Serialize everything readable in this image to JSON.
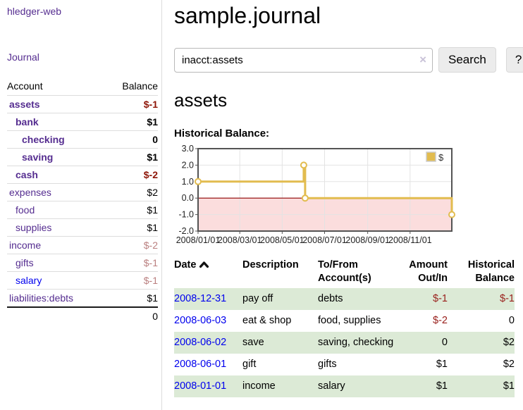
{
  "app": {
    "title": "hledger-web",
    "nav_journal": "Journal"
  },
  "sidebar": {
    "accounts_header": {
      "account": "Account",
      "balance": "Balance"
    },
    "accounts": [
      {
        "name": "assets",
        "balance": "$-1",
        "level": 1,
        "in_query": true,
        "link_unvisited": false
      },
      {
        "name": "bank",
        "balance": "$1",
        "level": 2,
        "in_query": true,
        "link_unvisited": false
      },
      {
        "name": "checking",
        "balance": "0",
        "level": 3,
        "in_query": true,
        "link_unvisited": false
      },
      {
        "name": "saving",
        "balance": "$1",
        "level": 3,
        "in_query": true,
        "link_unvisited": false
      },
      {
        "name": "cash",
        "balance": "$-2",
        "level": 2,
        "in_query": true,
        "link_unvisited": false
      },
      {
        "name": "expenses",
        "balance": "$2",
        "level": 1,
        "in_query": false,
        "link_unvisited": false
      },
      {
        "name": "food",
        "balance": "$1",
        "level": 2,
        "in_query": false,
        "link_unvisited": false
      },
      {
        "name": "supplies",
        "balance": "$1",
        "level": 2,
        "in_query": false,
        "link_unvisited": false
      },
      {
        "name": "income",
        "balance": "$-2",
        "level": 1,
        "in_query": false,
        "link_unvisited": false
      },
      {
        "name": "gifts",
        "balance": "$-1",
        "level": 2,
        "in_query": false,
        "link_unvisited": false
      },
      {
        "name": "salary",
        "balance": "$-1",
        "level": 2,
        "in_query": false,
        "link_unvisited": true
      },
      {
        "name": "liabilities:debts",
        "balance": "$1",
        "level": 1,
        "in_query": false,
        "link_unvisited": false
      }
    ],
    "total": "0"
  },
  "main": {
    "title": "sample.journal",
    "search": {
      "value": "inacct:assets",
      "clear_icon": "×",
      "button": "Search",
      "help_button": "?"
    },
    "account_heading": "assets",
    "chart_label": "Historical Balance:",
    "register": {
      "headers": {
        "date": "Date",
        "description": "Description",
        "accounts": "To/From Account(s)",
        "amount": "Amount Out/In",
        "balance": "Historical Balance"
      },
      "rows": [
        {
          "date": "2008-12-31",
          "description": "pay off",
          "accounts": "debts",
          "amount": "$-1",
          "balance": "$-1"
        },
        {
          "date": "2008-06-03",
          "description": "eat & shop",
          "accounts": "food, supplies",
          "amount": "$-2",
          "balance": "0"
        },
        {
          "date": "2008-06-02",
          "description": "save",
          "accounts": "saving, checking",
          "amount": "0",
          "balance": "$2"
        },
        {
          "date": "2008-06-01",
          "description": "gift",
          "accounts": "gifts",
          "amount": "$1",
          "balance": "$2"
        },
        {
          "date": "2008-01-01",
          "description": "income",
          "accounts": "salary",
          "amount": "$1",
          "balance": "$1"
        }
      ]
    }
  },
  "colors": {
    "visited_link": "#552d90",
    "unvisited_link": "#0000ee",
    "negative_strong": "#8e1507",
    "negative_soft": "#ba7f7f",
    "row_highlight_green": "#dcead6",
    "chart_line_gold": "#e2bc4f",
    "chart_negative_region": "#fbdddd",
    "chart_zero_line": "#8b0000"
  },
  "chart_data": {
    "type": "line",
    "step": true,
    "title": "Historical Balance:",
    "series": [
      {
        "name": "$",
        "color": "#e2bc4f",
        "points": [
          [
            "2008-01-01",
            1
          ],
          [
            "2008-06-01",
            2
          ],
          [
            "2008-06-03",
            0
          ],
          [
            "2008-12-31",
            -1
          ]
        ]
      }
    ],
    "x_range": [
      "2008-01-01",
      "2008-12-31"
    ],
    "x_tick_dates": [
      "2008-01-01",
      "2008-03-01",
      "2008-05-01",
      "2008-07-01",
      "2008-09-01",
      "2008-11-01"
    ],
    "x_tick_labels": [
      "2008/01/01",
      "2008/03/01",
      "2008/05/01",
      "2008/07/01",
      "2008/09/01",
      "2008/11/01"
    ],
    "ylim": [
      -2,
      3
    ],
    "y_ticks": [
      -2,
      -1,
      0,
      1,
      2,
      3
    ],
    "y_tick_labels": [
      "-2.0",
      "-1.0",
      "0.0",
      "1.0",
      "2.0",
      "3.0"
    ],
    "grid": true,
    "legend": {
      "label": "$",
      "position": "top-right"
    }
  }
}
